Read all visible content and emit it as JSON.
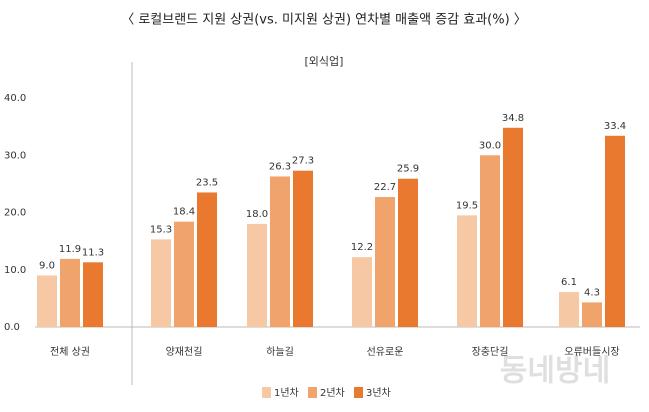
{
  "chart_data": {
    "type": "bar",
    "title": "〈 로컬브랜드 지원 상권(vs. 미지원 상권) 연차별 매출액 증감 효과(%) 〉",
    "subtitle": "[외식업]",
    "categories": [
      "전체 상권",
      "양재천길",
      "하늘길",
      "선유로운",
      "장충단길",
      "오류버들시장"
    ],
    "series": [
      {
        "name": "1년차",
        "color": "#f6c8a3",
        "values": [
          9.0,
          15.3,
          18.0,
          12.2,
          19.5,
          6.1
        ],
        "value_labels": [
          "9.0",
          "15.3",
          "18.0",
          "12.2",
          "19.5",
          "6.1"
        ]
      },
      {
        "name": "2년차",
        "color": "#f0a46c",
        "values": [
          11.9,
          18.4,
          26.3,
          22.7,
          30.0,
          4.3
        ],
        "value_labels": [
          "11.9",
          "18.4",
          "26.3",
          "22.7",
          "30.0",
          "4.3"
        ]
      },
      {
        "name": "3년차",
        "color": "#e8792e",
        "values": [
          11.3,
          23.5,
          27.3,
          25.9,
          34.8,
          33.4
        ],
        "value_labels": [
          "11.3",
          "23.5",
          "27.3",
          "25.9",
          "34.8",
          "33.4"
        ]
      }
    ],
    "ylim": [
      0,
      40
    ],
    "yticks": [
      {
        "value": 0,
        "label": "0.0"
      },
      {
        "value": 10,
        "label": "10.0"
      },
      {
        "value": 20,
        "label": "20.0"
      },
      {
        "value": 30,
        "label": "30.0"
      },
      {
        "value": 40,
        "label": "40.0"
      }
    ],
    "grid": false,
    "legend": "bottom",
    "watermark": "동네방네"
  }
}
